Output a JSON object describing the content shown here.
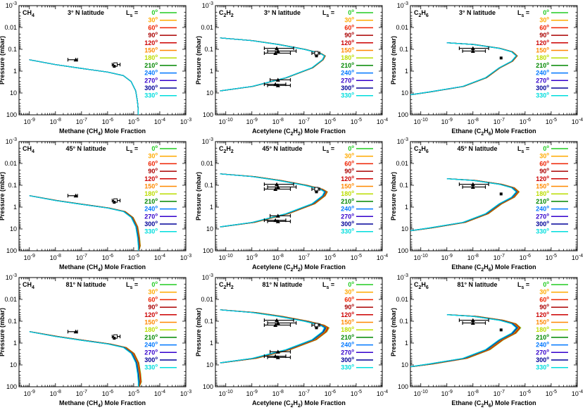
{
  "legend_header": "L",
  "legend_sub": "s",
  "legend_eq": "=",
  "season_labels": [
    "0°",
    "30°",
    "60°",
    "90°",
    "120°",
    "150°",
    "180°",
    "210°",
    "240°",
    "270°",
    "300°",
    "330°"
  ],
  "season_colors": [
    "#22cc22",
    "#ffaa00",
    "#ee2200",
    "#aa0000",
    "#cc0000",
    "#ff8800",
    "#bbdd00",
    "#008800",
    "#0077ff",
    "#3300cc",
    "#000099",
    "#00dddd"
  ],
  "x_tick_labels": {
    "CH4": [
      "10^-9",
      "10^-8",
      "10^-7",
      "10^-6",
      "10^-5",
      "10^-4",
      "10^-3"
    ],
    "C2H2": [
      "10^-10",
      "10^-9",
      "10^-8",
      "10^-7",
      "10^-6",
      "10^-5",
      "10^-4"
    ],
    "C2H6": [
      "10^-10",
      "10^-9",
      "10^-8",
      "10^-7",
      "10^-6",
      "10^-5",
      "10^-4"
    ]
  },
  "y_tick_labels": [
    "10^-3",
    "0.01",
    "0.1",
    "1",
    "10",
    "100"
  ],
  "chart_data": [
    {
      "type": "line",
      "species": "CH4",
      "species_label": "CH",
      "species_sub": "4",
      "latitude": "3° N latitude",
      "xlabel_pre": "Methane (CH",
      "xlabel_sub": "4",
      "xlabel_post": ") Mole Fraction",
      "ylabel": "Pressure (mbar)",
      "xscale": "log",
      "yscale": "log",
      "xlim": [
        4e-10,
        0.001
      ],
      "ylim": [
        100,
        0.001
      ],
      "y_reversed": true,
      "series_lines": [
        {
          "x": [
            1e-09,
            1e-08,
            1e-07,
            1e-06,
            4e-06,
            8e-06,
            1.2e-05,
            1.4e-05,
            1.5e-05,
            1.5e-05
          ],
          "y": [
            0.3,
            0.5,
            0.75,
            1.1,
            1.6,
            3,
            8,
            25,
            60,
            100
          ]
        }
      ],
      "obs_points": [
        {
          "x": 6e-08,
          "y": 0.3,
          "marker": "triangle",
          "xerr": [
            3e-08,
            7e-08
          ]
        },
        {
          "x": 2e-06,
          "y": 0.5,
          "marker": "square",
          "xerr": [
            1.5e-06,
            3e-06
          ]
        },
        {
          "x": 1.8e-06,
          "y": 0.6,
          "marker": "filled-square"
        }
      ],
      "spread": 0
    },
    {
      "type": "line",
      "species": "C2H2",
      "species_label": "C",
      "species_sub": "2",
      "species_label2": "H",
      "species_sub2": "2",
      "latitude": "3° N latitude",
      "xlabel_pre": "Acetylene (C",
      "xlabel_sub": "2",
      "xlabel_mid": "H",
      "xlabel_sub2": "2",
      "xlabel_post": ") Mole Fraction",
      "ylabel": "Pressure (mbar)",
      "xscale": "log",
      "yscale": "log",
      "xlim": [
        4e-11,
        0.0001
      ],
      "ylim": [
        100,
        0.001
      ],
      "y_reversed": true,
      "series_lines": [
        {
          "x": [
            6e-11,
            1e-09,
            1e-08,
            1e-07,
            4e-07,
            6e-07,
            5e-07,
            2e-07,
            2e-08,
            1e-09,
            6e-11
          ],
          "y": [
            0.03,
            0.04,
            0.06,
            0.1,
            0.15,
            0.2,
            0.3,
            0.7,
            2,
            5,
            8
          ]
        }
      ],
      "obs_points": [
        {
          "x": 9e-09,
          "y": 0.09,
          "marker": "triangle",
          "xerr": [
            3e-09,
            4e-08
          ]
        },
        {
          "x": 1e-08,
          "y": 0.12,
          "marker": "triangle",
          "xerr": [
            4e-09,
            5e-08
          ]
        },
        {
          "x": 8e-09,
          "y": 0.15,
          "marker": "triangle",
          "xerr": [
            3e-09,
            3e-08
          ]
        },
        {
          "x": 3e-07,
          "y": 0.15,
          "marker": "square",
          "xerr": [
            2e-07,
            4e-07
          ]
        },
        {
          "x": 3e-07,
          "y": 0.2,
          "marker": "filled-square"
        },
        {
          "x": 1e-08,
          "y": 2.5,
          "marker": "triangle",
          "xerr": [
            5e-09,
            3e-08
          ]
        },
        {
          "x": 8e-09,
          "y": 4,
          "marker": "triangle",
          "xerr": [
            3e-09,
            2e-08
          ]
        },
        {
          "x": 1e-08,
          "y": 4.5,
          "marker": "triangle",
          "xerr": [
            4e-09,
            3e-08
          ]
        }
      ],
      "spread": 0.04
    },
    {
      "type": "line",
      "species": "C2H6",
      "species_label": "C",
      "species_sub": "2",
      "species_label2": "H",
      "species_sub2": "6",
      "latitude": "3° N latitude",
      "xlabel_pre": "Ethane (C",
      "xlabel_sub": "2",
      "xlabel_mid": "H",
      "xlabel_sub2": "6",
      "xlabel_post": ") Mole Fraction",
      "ylabel": "Pressure (mbar)",
      "xscale": "log",
      "yscale": "log",
      "xlim": [
        4e-11,
        0.0001
      ],
      "ylim": [
        100,
        0.001
      ],
      "y_reversed": true,
      "series_lines": [
        {
          "x": [
            1e-09,
            1e-08,
            1e-07,
            3e-07,
            4.5e-07,
            3e-07,
            1e-07,
            3e-08,
            4e-09,
            2e-10,
            4e-11
          ],
          "y": [
            0.05,
            0.06,
            0.09,
            0.13,
            0.2,
            0.35,
            0.7,
            2,
            5,
            9,
            12
          ]
        }
      ],
      "obs_points": [
        {
          "x": 1e-08,
          "y": 0.09,
          "marker": "triangle",
          "xerr": [
            3e-09,
            4e-08
          ]
        },
        {
          "x": 1e-08,
          "y": 0.12,
          "marker": "triangle",
          "xerr": [
            4e-09,
            3e-08
          ]
        },
        {
          "x": 1.2e-07,
          "y": 0.25,
          "marker": "filled-square"
        }
      ],
      "spread": 0.05
    },
    {
      "type": "line",
      "species": "CH4",
      "species_label": "CH",
      "species_sub": "4",
      "latitude": "45° N latitude",
      "xlabel_pre": "Methane (CH",
      "xlabel_sub": "4",
      "xlabel_post": ") Mole Fraction",
      "ylabel": "Pressure (mbar)",
      "xscale": "log",
      "yscale": "log",
      "xlim": [
        4e-10,
        0.001
      ],
      "ylim": [
        100,
        0.001
      ],
      "y_reversed": true,
      "series_lines": [
        {
          "x": [
            1e-09,
            1e-08,
            1e-07,
            1e-06,
            4e-06,
            8e-06,
            1.2e-05,
            1.4e-05,
            1.5e-05,
            1.5e-05
          ],
          "y": [
            0.3,
            0.5,
            0.75,
            1.1,
            1.6,
            3,
            8,
            25,
            60,
            100
          ]
        }
      ],
      "obs_points": [
        {
          "x": 6e-08,
          "y": 0.3,
          "marker": "triangle",
          "xerr": [
            3e-08,
            7e-08
          ]
        },
        {
          "x": 2e-06,
          "y": 0.5,
          "marker": "square",
          "xerr": [
            1.5e-06,
            3e-06
          ]
        },
        {
          "x": 1.8e-06,
          "y": 0.6,
          "marker": "filled-square"
        }
      ],
      "spread": 0.08
    },
    {
      "type": "line",
      "species": "C2H2",
      "species_label": "C",
      "species_sub": "2",
      "species_label2": "H",
      "species_sub2": "2",
      "latitude": "45° N latitude",
      "xlabel_pre": "Acetylene (C",
      "xlabel_sub": "2",
      "xlabel_mid": "H",
      "xlabel_sub2": "2",
      "xlabel_post": ") Mole Fraction",
      "ylabel": "Pressure (mbar)",
      "xscale": "log",
      "yscale": "log",
      "xlim": [
        4e-11,
        0.0001
      ],
      "ylim": [
        100,
        0.001
      ],
      "y_reversed": true,
      "series_lines": [
        {
          "x": [
            6e-11,
            1e-09,
            1e-08,
            1e-07,
            4e-07,
            6e-07,
            5e-07,
            2e-07,
            2e-08,
            1e-09,
            6e-11
          ],
          "y": [
            0.03,
            0.04,
            0.06,
            0.1,
            0.15,
            0.2,
            0.3,
            0.7,
            2,
            5,
            8
          ]
        }
      ],
      "obs_points": [
        {
          "x": 9e-09,
          "y": 0.09,
          "marker": "triangle",
          "xerr": [
            3e-09,
            4e-08
          ]
        },
        {
          "x": 1e-08,
          "y": 0.12,
          "marker": "triangle",
          "xerr": [
            4e-09,
            5e-08
          ]
        },
        {
          "x": 8e-09,
          "y": 0.15,
          "marker": "triangle",
          "xerr": [
            3e-09,
            3e-08
          ]
        },
        {
          "x": 3e-07,
          "y": 0.15,
          "marker": "square",
          "xerr": [
            2e-07,
            4e-07
          ]
        },
        {
          "x": 3e-07,
          "y": 0.2,
          "marker": "filled-square"
        },
        {
          "x": 1e-08,
          "y": 2.5,
          "marker": "triangle",
          "xerr": [
            5e-09,
            3e-08
          ]
        },
        {
          "x": 8e-09,
          "y": 4,
          "marker": "triangle",
          "xerr": [
            3e-09,
            2e-08
          ]
        },
        {
          "x": 1e-08,
          "y": 4.5,
          "marker": "triangle",
          "xerr": [
            4e-09,
            3e-08
          ]
        }
      ],
      "spread": 0.12
    },
    {
      "type": "line",
      "species": "C2H6",
      "species_label": "C",
      "species_sub": "2",
      "species_label2": "H",
      "species_sub2": "6",
      "latitude": "45° N latitude",
      "xlabel_pre": "Ethane (C",
      "xlabel_sub": "2",
      "xlabel_mid": "H",
      "xlabel_sub2": "6",
      "xlabel_post": ") Mole Fraction",
      "ylabel": "Pressure (mbar)",
      "xscale": "log",
      "yscale": "log",
      "xlim": [
        4e-11,
        0.0001
      ],
      "ylim": [
        100,
        0.001
      ],
      "y_reversed": true,
      "series_lines": [
        {
          "x": [
            1e-09,
            1e-08,
            1e-07,
            3e-07,
            4.5e-07,
            3e-07,
            1e-07,
            3e-08,
            4e-09,
            2e-10,
            4e-11
          ],
          "y": [
            0.05,
            0.06,
            0.09,
            0.13,
            0.2,
            0.35,
            0.7,
            2,
            5,
            9,
            12
          ]
        }
      ],
      "obs_points": [
        {
          "x": 1e-08,
          "y": 0.09,
          "marker": "triangle",
          "xerr": [
            3e-09,
            4e-08
          ]
        },
        {
          "x": 1e-08,
          "y": 0.12,
          "marker": "triangle",
          "xerr": [
            4e-09,
            3e-08
          ]
        },
        {
          "x": 1.2e-07,
          "y": 0.25,
          "marker": "filled-square"
        }
      ],
      "spread": 0.12
    },
    {
      "type": "line",
      "species": "CH4",
      "species_label": "CH",
      "species_sub": "4",
      "latitude": "81° N latitude",
      "xlabel_pre": "Methane (CH",
      "xlabel_sub": "4",
      "xlabel_post": ") Mole Fraction",
      "ylabel": "Pressure (mbar)",
      "xscale": "log",
      "yscale": "log",
      "xlim": [
        4e-10,
        0.001
      ],
      "ylim": [
        100,
        0.001
      ],
      "y_reversed": true,
      "series_lines": [
        {
          "x": [
            1e-09,
            1e-08,
            1e-07,
            1e-06,
            4e-06,
            8e-06,
            1.2e-05,
            1.4e-05,
            1.5e-05,
            1.5e-05
          ],
          "y": [
            0.3,
            0.5,
            0.75,
            1.1,
            1.6,
            3,
            8,
            25,
            60,
            100
          ]
        }
      ],
      "obs_points": [
        {
          "x": 6e-08,
          "y": 0.3,
          "marker": "triangle",
          "xerr": [
            3e-08,
            7e-08
          ]
        },
        {
          "x": 2e-06,
          "y": 0.5,
          "marker": "square",
          "xerr": [
            1.5e-06,
            3e-06
          ]
        },
        {
          "x": 1.8e-06,
          "y": 0.6,
          "marker": "filled-square"
        }
      ],
      "spread": 0.12
    },
    {
      "type": "line",
      "species": "C2H2",
      "species_label": "C",
      "species_sub": "2",
      "species_label2": "H",
      "species_sub2": "2",
      "latitude": "81° N latitude",
      "xlabel_pre": "Acetylene (C",
      "xlabel_sub": "2",
      "xlabel_mid": "H",
      "xlabel_sub2": "2",
      "xlabel_post": ") Mole Fraction",
      "ylabel": "Pressure (mbar)",
      "xscale": "log",
      "yscale": "log",
      "xlim": [
        4e-11,
        0.0001
      ],
      "ylim": [
        100,
        0.001
      ],
      "y_reversed": true,
      "series_lines": [
        {
          "x": [
            6e-11,
            1e-09,
            1e-08,
            1e-07,
            4e-07,
            6e-07,
            5e-07,
            2e-07,
            2e-08,
            1e-09,
            6e-11
          ],
          "y": [
            0.03,
            0.04,
            0.06,
            0.1,
            0.15,
            0.2,
            0.3,
            0.7,
            2,
            5,
            8
          ]
        }
      ],
      "obs_points": [
        {
          "x": 9e-09,
          "y": 0.09,
          "marker": "triangle",
          "xerr": [
            3e-09,
            4e-08
          ]
        },
        {
          "x": 1e-08,
          "y": 0.12,
          "marker": "triangle",
          "xerr": [
            4e-09,
            5e-08
          ]
        },
        {
          "x": 8e-09,
          "y": 0.15,
          "marker": "triangle",
          "xerr": [
            3e-09,
            3e-08
          ]
        },
        {
          "x": 3e-07,
          "y": 0.15,
          "marker": "square",
          "xerr": [
            2e-07,
            4e-07
          ]
        },
        {
          "x": 3e-07,
          "y": 0.2,
          "marker": "filled-square"
        },
        {
          "x": 1e-08,
          "y": 2.5,
          "marker": "triangle",
          "xerr": [
            5e-09,
            3e-08
          ]
        },
        {
          "x": 8e-09,
          "y": 4,
          "marker": "triangle",
          "xerr": [
            3e-09,
            2e-08
          ]
        },
        {
          "x": 1e-08,
          "y": 4.5,
          "marker": "triangle",
          "xerr": [
            4e-09,
            3e-08
          ]
        }
      ],
      "spread": 0.18
    },
    {
      "type": "line",
      "species": "C2H6",
      "species_label": "C",
      "species_sub": "2",
      "species_label2": "H",
      "species_sub2": "6",
      "latitude": "81° N latitude",
      "xlabel_pre": "Ethane (C",
      "xlabel_sub": "2",
      "xlabel_mid": "H",
      "xlabel_sub2": "6",
      "xlabel_post": ") Mole Fraction",
      "ylabel": "Pressure (mbar)",
      "xscale": "log",
      "yscale": "log",
      "xlim": [
        4e-11,
        0.0001
      ],
      "ylim": [
        100,
        0.001
      ],
      "y_reversed": true,
      "series_lines": [
        {
          "x": [
            1e-09,
            1e-08,
            1e-07,
            3e-07,
            4.5e-07,
            3e-07,
            1e-07,
            3e-08,
            4e-09,
            2e-10,
            4e-11
          ],
          "y": [
            0.05,
            0.06,
            0.09,
            0.13,
            0.2,
            0.35,
            0.7,
            2,
            5,
            9,
            12
          ]
        }
      ],
      "obs_points": [
        {
          "x": 1e-08,
          "y": 0.09,
          "marker": "triangle",
          "xerr": [
            3e-09,
            4e-08
          ]
        },
        {
          "x": 1e-08,
          "y": 0.12,
          "marker": "triangle",
          "xerr": [
            4e-09,
            3e-08
          ]
        },
        {
          "x": 1.2e-07,
          "y": 0.25,
          "marker": "filled-square"
        }
      ],
      "spread": 0.18
    }
  ]
}
